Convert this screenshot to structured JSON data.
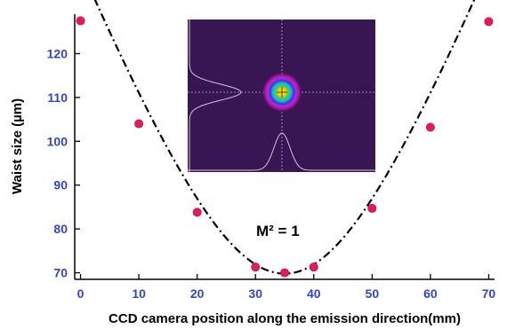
{
  "chart_data": {
    "type": "scatter",
    "xlabel": "CCD camera position along the emission direction(mm)",
    "ylabel": "Waist size (µm)",
    "xlim": [
      -1,
      71
    ],
    "ylim": [
      68.5,
      129
    ],
    "x_ticks": [
      0,
      10,
      20,
      30,
      40,
      50,
      60,
      70
    ],
    "y_ticks": [
      70,
      80,
      90,
      100,
      110,
      120
    ],
    "series": [
      {
        "style": "points",
        "color": "#e8195a",
        "points": [
          {
            "x": 0,
            "y": 127.5
          },
          {
            "x": 10,
            "y": 104
          },
          {
            "x": 20,
            "y": 83.8
          },
          {
            "x": 30,
            "y": 71.3
          },
          {
            "x": 35,
            "y": 70
          },
          {
            "x": 40,
            "y": 71.3
          },
          {
            "x": 50,
            "y": 84.7
          },
          {
            "x": 60,
            "y": 103.2
          },
          {
            "x": 70,
            "y": 127.3
          }
        ]
      },
      {
        "style": "fit-curve",
        "color": "#000000",
        "line": "dash-dot",
        "model": "hyperbolic beam waist fit",
        "w0": 69.8,
        "z0": 35,
        "zr": 20.2
      }
    ],
    "annotation": "M² = 1",
    "grid": false,
    "inset": {
      "description": "beam profile image",
      "background_color": "#3a1553",
      "profile_color": "#cfc6d8"
    }
  }
}
